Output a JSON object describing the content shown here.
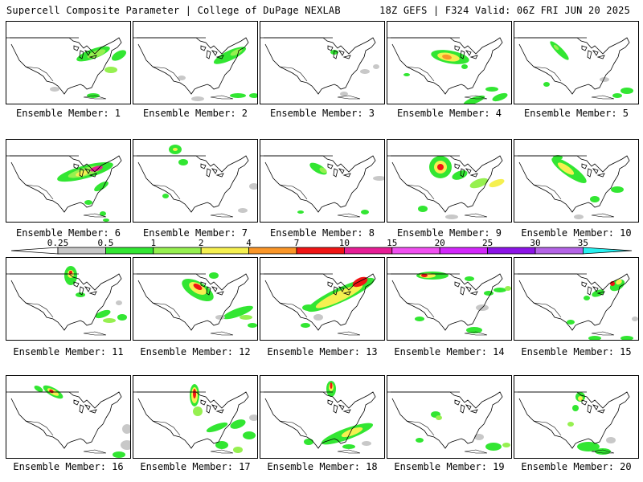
{
  "header": {
    "left_title": "Supercell Composite Parameter | College of DuPage NEXLAB",
    "right_title": "18Z GEFS | F324 Valid: 06Z FRI JUN 20 2025"
  },
  "caption_prefix": "Ensemble Member:",
  "members": [
    {
      "id": "1",
      "label": "Ensemble Member: 1"
    },
    {
      "id": "2",
      "label": "Ensemble Member: 2"
    },
    {
      "id": "3",
      "label": "Ensemble Member: 3"
    },
    {
      "id": "4",
      "label": "Ensemble Member: 4"
    },
    {
      "id": "5",
      "label": "Ensemble Member: 5"
    },
    {
      "id": "6",
      "label": "Ensemble Member: 6"
    },
    {
      "id": "7",
      "label": "Ensemble Member: 7"
    },
    {
      "id": "8",
      "label": "Ensemble Member: 8"
    },
    {
      "id": "9",
      "label": "Ensemble Member: 9"
    },
    {
      "id": "10",
      "label": "Ensemble Member: 10"
    },
    {
      "id": "11",
      "label": "Ensemble Member: 11"
    },
    {
      "id": "12",
      "label": "Ensemble Member: 12"
    },
    {
      "id": "13",
      "label": "Ensemble Member: 13"
    },
    {
      "id": "14",
      "label": "Ensemble Member: 14"
    },
    {
      "id": "15",
      "label": "Ensemble Member: 15"
    },
    {
      "id": "16",
      "label": "Ensemble Member: 16"
    },
    {
      "id": "17",
      "label": "Ensemble Member: 17"
    },
    {
      "id": "18",
      "label": "Ensemble Member: 18"
    },
    {
      "id": "19",
      "label": "Ensemble Member: 19"
    },
    {
      "id": "20",
      "label": "Ensemble Member: 20"
    }
  ],
  "colorbar": {
    "ticks": [
      "0.25",
      "0.5",
      "1",
      "2",
      "4",
      "7",
      "10",
      "15",
      "20",
      "25",
      "30",
      "35"
    ],
    "colors": [
      "#c8c8c8",
      "#32e632",
      "#96f050",
      "#f5f050",
      "#fa9628",
      "#f01414",
      "#e61e96",
      "#f050f0",
      "#d228fa",
      "#8c14e6",
      "#b464e6",
      "#28f0f0"
    ]
  }
}
